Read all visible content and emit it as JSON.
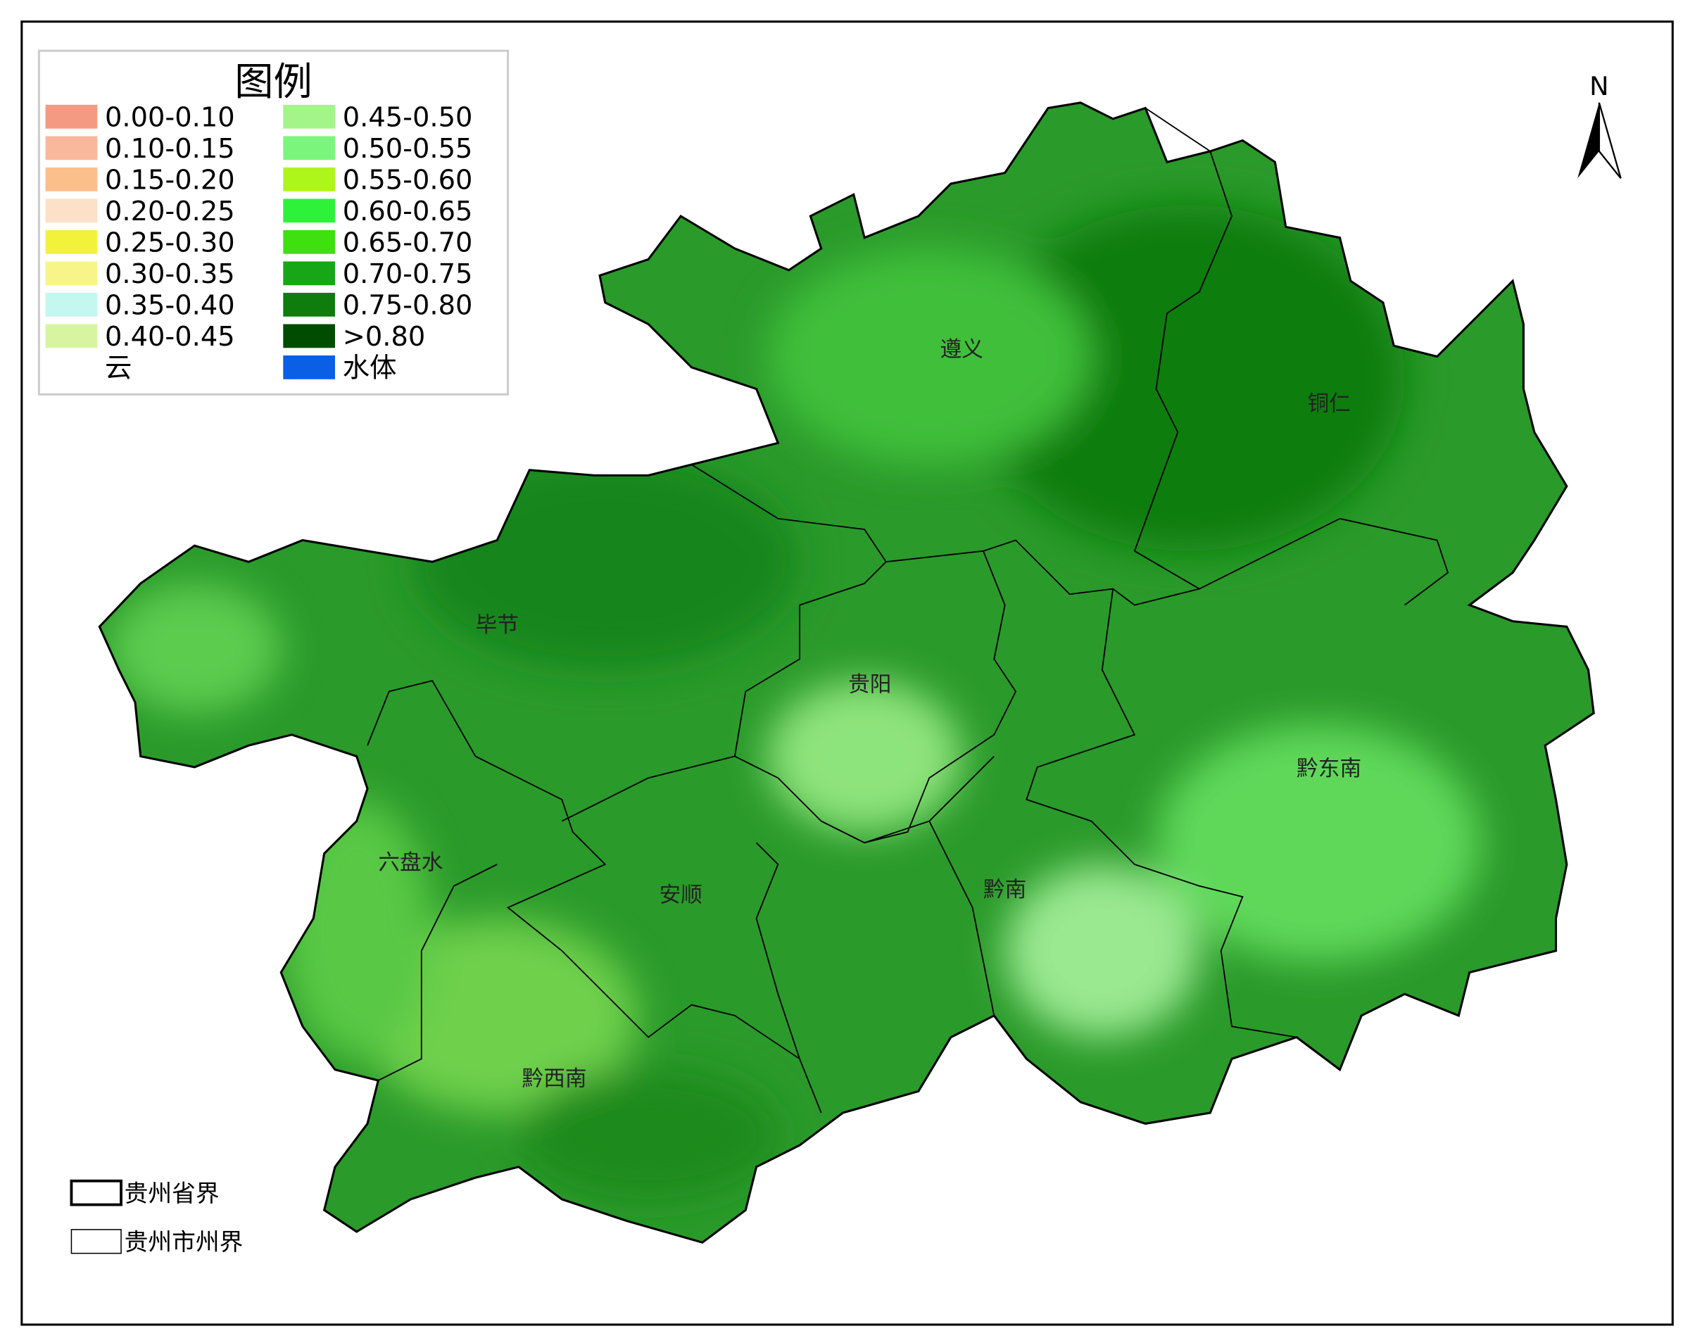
{
  "legend": {
    "title": "图例",
    "items": [
      {
        "label": "0.00-0.10",
        "color": "#f59a82"
      },
      {
        "label": "0.10-0.15",
        "color": "#f9b89c"
      },
      {
        "label": "0.15-0.20",
        "color": "#fbbf8c"
      },
      {
        "label": "0.20-0.25",
        "color": "#fde0c8"
      },
      {
        "label": "0.25-0.30",
        "color": "#f2f23a"
      },
      {
        "label": "0.30-0.35",
        "color": "#f7f58a"
      },
      {
        "label": "0.35-0.40",
        "color": "#c4f7f0"
      },
      {
        "label": "0.40-0.45",
        "color": "#d7f5a0"
      },
      {
        "label": "云",
        "color": "#ffffff"
      },
      {
        "label": "0.45-0.50",
        "color": "#a3f58a"
      },
      {
        "label": "0.50-0.55",
        "color": "#7cf57c"
      },
      {
        "label": "0.55-0.60",
        "color": "#aef51c"
      },
      {
        "label": "0.60-0.65",
        "color": "#2ef23a"
      },
      {
        "label": "0.65-0.70",
        "color": "#3ee010"
      },
      {
        "label": "0.70-0.75",
        "color": "#16a616"
      },
      {
        "label": "0.75-0.80",
        "color": "#0e7d0e"
      },
      {
        "label": ">0.80",
        "color": "#004c00"
      },
      {
        "label": "水体",
        "color": "#0a5fe6"
      }
    ]
  },
  "regions": [
    {
      "label": "遵义"
    },
    {
      "label": "铜仁"
    },
    {
      "label": "毕节"
    },
    {
      "label": "贵阳"
    },
    {
      "label": "黔东南"
    },
    {
      "label": "六盘水"
    },
    {
      "label": "安顺"
    },
    {
      "label": "黔南"
    },
    {
      "label": "黔西南"
    }
  ],
  "boundary_legend": [
    {
      "label": "贵州省界"
    },
    {
      "label": "贵州市州界"
    }
  ],
  "north": "N"
}
